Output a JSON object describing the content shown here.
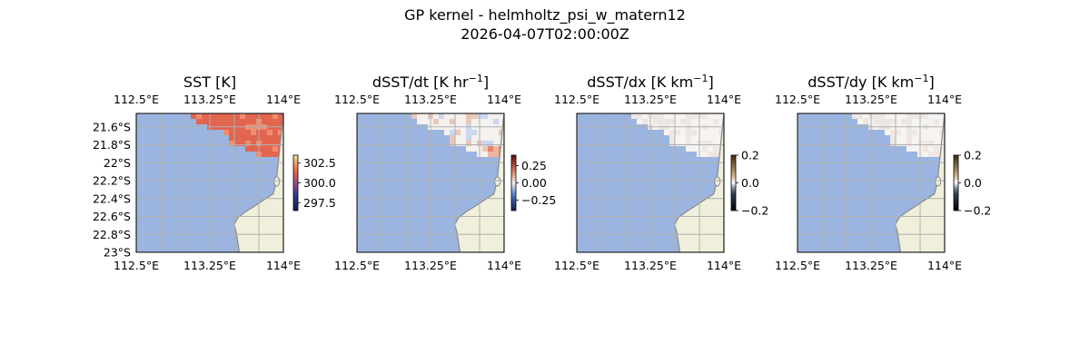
{
  "figure": {
    "title_line1": "GP kernel - helmholtz_psi_w_matern12",
    "title_line2": "2026-04-07T02:00:00Z"
  },
  "colors": {
    "ocean": "#9bb5e0",
    "land": "#efefdb",
    "coast": "#8c8c8c",
    "grid": "#b0b0b0",
    "sst_hot": "#e2654f",
    "sst_cool": "#ef8d72"
  },
  "chart_data": [
    {
      "type": "heatmap",
      "title": "SST [K]",
      "title_sup": "",
      "title_suffix": "",
      "xlim": [
        112.5,
        114.0
      ],
      "ylim": [
        -23.0,
        -21.45
      ],
      "top_ticks": [
        "112.5°E",
        "113.25°E",
        "114°E"
      ],
      "bottom_ticks": [
        "112.5°E",
        "113.25°E",
        "114°E"
      ],
      "left_ticks": [
        "21.6°S",
        "21.8°S",
        "22°S",
        "22.2°S",
        "22.4°S",
        "22.6°S",
        "22.8°S",
        "23°S"
      ],
      "colorbar": {
        "ticks": [
          "302.5",
          "300.0",
          "297.5"
        ],
        "tick_values": [
          302.5,
          300.0,
          297.5
        ],
        "range": [
          296.5,
          303.5
        ],
        "cmap": "thermal"
      },
      "field": "sst",
      "value_range_K": [
        301.5,
        302.5
      ]
    },
    {
      "type": "heatmap",
      "title": "dSST/dt [K hr",
      "title_sup": "−1",
      "title_suffix": "]",
      "xlim": [
        112.5,
        114.0
      ],
      "ylim": [
        -23.0,
        -21.45
      ],
      "top_ticks": [
        "112.5°E",
        "113.25°E",
        "114°E"
      ],
      "bottom_ticks": [
        "112.5°E",
        "113.25°E",
        "114°E"
      ],
      "left_ticks": [],
      "colorbar": {
        "ticks": [
          "0.25",
          "0.00",
          "−0.25"
        ],
        "tick_values": [
          0.25,
          0.0,
          -0.25
        ],
        "range": [
          -0.4,
          0.4
        ],
        "cmap": "balance"
      },
      "field": "dt"
    },
    {
      "type": "heatmap",
      "title": "dSST/dx [K km",
      "title_sup": "−1",
      "title_suffix": "]",
      "xlim": [
        112.5,
        114.0
      ],
      "ylim": [
        -23.0,
        -21.45
      ],
      "top_ticks": [
        "112.5°E",
        "113.25°E",
        "114°E"
      ],
      "bottom_ticks": [
        "112.5°E",
        "113.25°E",
        "114°E"
      ],
      "left_ticks": [],
      "colorbar": {
        "ticks": [
          "0.2",
          "0.0",
          "−0.2"
        ],
        "tick_values": [
          0.2,
          0.0,
          -0.2
        ],
        "range": [
          -0.2,
          0.2
        ],
        "cmap": "diff"
      },
      "field": "dx"
    },
    {
      "type": "heatmap",
      "title": "dSST/dy [K km",
      "title_sup": "−1",
      "title_suffix": "]",
      "xlim": [
        112.5,
        114.0
      ],
      "ylim": [
        -23.0,
        -21.45
      ],
      "top_ticks": [
        "112.5°E",
        "113.25°E",
        "114°E"
      ],
      "bottom_ticks": [
        "112.5°E",
        "113.25°E",
        "114°E"
      ],
      "left_ticks": [],
      "colorbar": {
        "ticks": [
          "0.2",
          "0.0",
          "−0.2"
        ],
        "tick_values": [
          0.2,
          0.0,
          -0.2
        ],
        "range": [
          -0.2,
          0.2
        ],
        "cmap": "diff"
      },
      "field": "dy"
    }
  ]
}
